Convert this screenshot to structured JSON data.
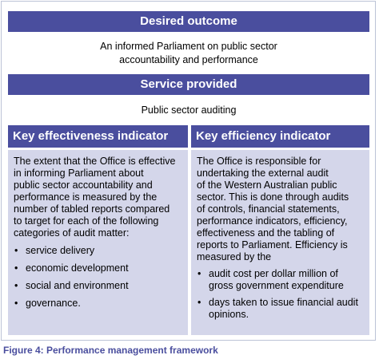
{
  "desired_outcome": {
    "heading": "Desired outcome",
    "line1": "An informed Parliament on public sector",
    "line2": "accountability and performance"
  },
  "service_provided": {
    "heading": "Service provided",
    "text": "Public sector auditing"
  },
  "effectiveness": {
    "heading": "Key effectiveness indicator",
    "lines": [
      "The extent that the Office is effective",
      "in informing Parliament about",
      "public sector accountability and",
      "performance is measured by the",
      "number of tabled reports compared",
      "to target for each of the following",
      "categories of audit matter:"
    ],
    "items": [
      "service delivery",
      "economic development",
      "social and environment",
      "governance."
    ]
  },
  "efficiency": {
    "heading": "Key efficiency indicator",
    "lines": [
      "The Office is responsible for",
      "undertaking the external audit",
      "of the Western Australian public",
      "sector. This is done through audits",
      "of controls, financial statements,",
      "performance indicators, efficiency,",
      "effectiveness and the tabling of",
      "reports to Parliament. Efficiency is",
      "measured by the"
    ],
    "items": [
      [
        "audit cost per dollar million of",
        "gross government expenditure"
      ],
      [
        "days taken to issue financial audit",
        "opinions."
      ]
    ]
  },
  "caption": "Figure 4: Performance management framework",
  "colors": {
    "band": "#4a4e9e",
    "panel": "#d4d6ea",
    "caption": "#4a4e9e"
  }
}
